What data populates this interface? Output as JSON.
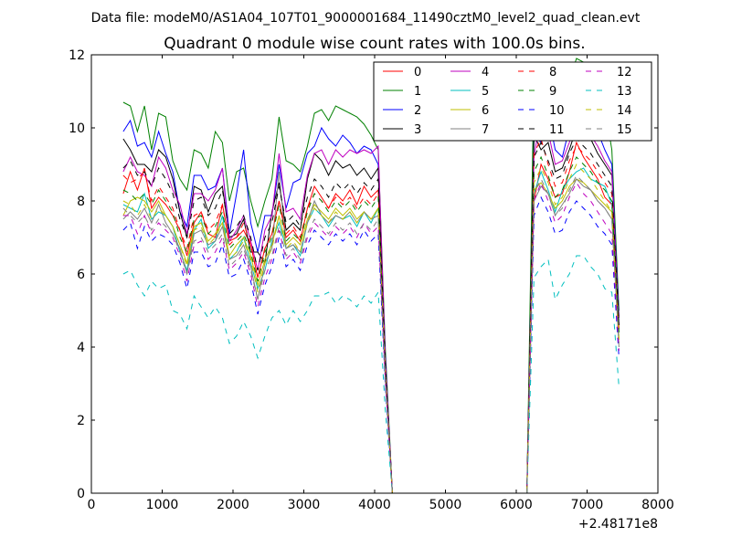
{
  "header": {
    "datafile": "Data file: modeM0/AS1A04_107T01_9000001684_11490cztM0_level2_quad_clean.evt"
  },
  "chart_data": {
    "type": "line",
    "title": "Quadrant 0 module wise count rates with 100.0s bins.",
    "xlabel": "",
    "ylabel": "",
    "offset_text": "+2.48171e8",
    "xlim": [
      0,
      8000
    ],
    "ylim": [
      0,
      12
    ],
    "x_ticks": [
      "0",
      "1000",
      "2000",
      "3000",
      "4000",
      "5000",
      "6000",
      "7000",
      "8000"
    ],
    "y_ticks": [
      "0",
      "2",
      "4",
      "6",
      "8",
      "10",
      "12"
    ],
    "legend_position": "top-right",
    "x": [
      450,
      550,
      650,
      750,
      850,
      950,
      1050,
      1150,
      1250,
      1350,
      1450,
      1550,
      1650,
      1750,
      1850,
      1950,
      2050,
      2150,
      2250,
      2350,
      2450,
      2550,
      2650,
      2750,
      2850,
      2950,
      3050,
      3150,
      3250,
      3350,
      3450,
      3550,
      3650,
      3750,
      3850,
      3950,
      4050,
      4150,
      4250,
      4350,
      4450,
      4550,
      4650,
      4750,
      4850,
      4950,
      5050,
      5150,
      5250,
      5350,
      5450,
      5550,
      5650,
      5750,
      5850,
      5950,
      6050,
      6150,
      6250,
      6350,
      6450,
      6550,
      6650,
      6750,
      6850,
      6950,
      7050,
      7150,
      7250,
      7350,
      7450
    ],
    "series": [
      {
        "name": "0",
        "color": "#ff0000",
        "dash": "solid",
        "values": [
          8.2,
          8.8,
          8.3,
          8.9,
          7.8,
          8.1,
          7.9,
          7.6,
          7.2,
          6.5,
          7.4,
          7.7,
          7.1,
          7.0,
          7.9,
          6.9,
          7.0,
          7.2,
          6.8,
          5.9,
          6.7,
          7.1,
          8.0,
          7.0,
          7.2,
          6.9,
          7.8,
          8.4,
          8.1,
          7.8,
          8.2,
          8.0,
          8.3,
          7.9,
          8.4,
          8.1,
          8.3,
          3.5,
          0,
          0,
          0,
          0,
          0,
          0,
          0,
          0,
          0,
          0,
          0,
          0,
          0,
          0,
          0,
          0,
          0,
          0,
          0,
          0,
          8.0,
          9.0,
          8.6,
          8.1,
          8.2,
          8.8,
          9.6,
          9.2,
          8.9,
          8.6,
          8.1,
          7.9,
          4.8
        ]
      },
      {
        "name": "1",
        "color": "#008000",
        "dash": "solid",
        "values": [
          10.7,
          10.6,
          9.9,
          10.6,
          9.4,
          10.4,
          10.3,
          9.1,
          8.6,
          8.3,
          9.4,
          9.3,
          8.9,
          9.9,
          9.6,
          8.0,
          8.8,
          8.9,
          8.0,
          7.3,
          8.0,
          8.6,
          10.3,
          9.1,
          9.0,
          8.8,
          9.5,
          10.4,
          10.5,
          10.2,
          10.6,
          10.5,
          10.4,
          10.3,
          10.1,
          9.8,
          9.4,
          4.0,
          0,
          0,
          0,
          0,
          0,
          0,
          0,
          0,
          0,
          0,
          0,
          0,
          0,
          0,
          0,
          0,
          0,
          0,
          0,
          0,
          11.5,
          10.8,
          11.2,
          10.2,
          10.4,
          11.3,
          11.9,
          11.8,
          11.6,
          11.0,
          10.6,
          9.4,
          5.0
        ]
      },
      {
        "name": "2",
        "color": "#0000ff",
        "dash": "solid",
        "values": [
          9.9,
          10.2,
          9.5,
          9.6,
          9.2,
          9.9,
          9.3,
          8.8,
          7.7,
          7.3,
          8.7,
          8.7,
          8.3,
          8.4,
          8.9,
          7.1,
          8.2,
          9.4,
          7.4,
          6.6,
          7.6,
          7.6,
          9.0,
          7.8,
          8.5,
          8.6,
          9.3,
          9.5,
          10.0,
          9.7,
          9.5,
          9.8,
          9.6,
          9.3,
          9.5,
          9.4,
          9.0,
          3.8,
          0,
          0,
          0,
          0,
          0,
          0,
          0,
          0,
          0,
          0,
          0,
          0,
          0,
          0,
          0,
          0,
          0,
          0,
          0,
          0,
          9.8,
          9.6,
          10.4,
          9.4,
          9.2,
          10.0,
          10.6,
          10.4,
          10.2,
          9.9,
          9.4,
          9.0,
          4.8
        ]
      },
      {
        "name": "3",
        "color": "#000000",
        "dash": "solid",
        "values": [
          9.7,
          9.4,
          9.0,
          9.0,
          8.8,
          9.4,
          9.2,
          8.6,
          7.7,
          7.0,
          8.4,
          8.3,
          7.7,
          8.2,
          8.4,
          7.0,
          7.1,
          7.5,
          6.6,
          6.6,
          6.3,
          7.7,
          8.5,
          7.2,
          7.4,
          7.2,
          8.6,
          9.3,
          9.1,
          8.7,
          9.1,
          8.9,
          9.0,
          8.7,
          8.9,
          8.6,
          8.9,
          3.6,
          0,
          0,
          0,
          0,
          0,
          0,
          0,
          0,
          0,
          0,
          0,
          0,
          0,
          0,
          0,
          0,
          0,
          0,
          0,
          0,
          9.8,
          9.4,
          9.6,
          8.8,
          8.9,
          9.4,
          10.0,
          9.8,
          9.7,
          9.3,
          9.0,
          8.7,
          4.7
        ]
      },
      {
        "name": "4",
        "color": "#bf00bf",
        "dash": "solid",
        "values": [
          8.8,
          9.2,
          8.8,
          8.7,
          8.4,
          9.2,
          8.9,
          8.3,
          7.9,
          7.1,
          8.2,
          8.2,
          8.0,
          8.3,
          8.9,
          6.9,
          7.2,
          7.6,
          6.9,
          6.1,
          7.2,
          7.6,
          9.3,
          7.7,
          7.8,
          7.5,
          8.7,
          9.3,
          9.4,
          9.0,
          9.4,
          9.2,
          9.4,
          9.3,
          9.4,
          9.3,
          9.5,
          3.7,
          0,
          0,
          0,
          0,
          0,
          0,
          0,
          0,
          0,
          0,
          0,
          0,
          0,
          0,
          0,
          0,
          0,
          0,
          0,
          0,
          9.2,
          10.4,
          9.9,
          9.0,
          9.1,
          9.6,
          10.1,
          9.9,
          9.8,
          9.5,
          9.1,
          8.8,
          4.6
        ]
      },
      {
        "name": "5",
        "color": "#00bfbf",
        "dash": "solid",
        "values": [
          7.9,
          7.8,
          7.7,
          8.2,
          7.5,
          7.7,
          7.6,
          7.3,
          6.6,
          6.1,
          7.2,
          7.5,
          6.7,
          6.9,
          7.6,
          6.4,
          6.6,
          7.0,
          6.3,
          5.6,
          6.1,
          6.9,
          7.4,
          6.7,
          6.8,
          6.5,
          7.4,
          7.8,
          7.6,
          7.3,
          7.6,
          7.5,
          7.6,
          7.3,
          7.7,
          7.4,
          7.8,
          3.3,
          0,
          0,
          0,
          0,
          0,
          0,
          0,
          0,
          0,
          0,
          0,
          0,
          0,
          0,
          0,
          0,
          0,
          0,
          0,
          0,
          8.2,
          8.8,
          8.3,
          7.7,
          8.3,
          8.6,
          8.8,
          8.9,
          8.6,
          8.5,
          8.4,
          7.9,
          4.4
        ]
      },
      {
        "name": "6",
        "color": "#bfbf00",
        "dash": "solid",
        "values": [
          7.6,
          8.0,
          8.1,
          8.0,
          7.7,
          8.0,
          7.6,
          7.3,
          6.8,
          6.3,
          7.3,
          7.4,
          6.9,
          7.1,
          7.4,
          6.5,
          6.8,
          7.0,
          6.5,
          5.7,
          6.4,
          6.8,
          7.6,
          6.8,
          7.0,
          6.8,
          7.5,
          7.9,
          7.7,
          7.5,
          7.8,
          7.6,
          7.8,
          7.5,
          7.7,
          7.5,
          7.8,
          3.3,
          0,
          0,
          0,
          0,
          0,
          0,
          0,
          0,
          0,
          0,
          0,
          0,
          0,
          0,
          0,
          0,
          0,
          0,
          0,
          0,
          8.3,
          8.5,
          8.2,
          7.8,
          8.0,
          8.4,
          8.6,
          8.5,
          8.3,
          8.1,
          7.9,
          7.7,
          4.2
        ]
      },
      {
        "name": "7",
        "color": "#808080",
        "dash": "solid",
        "values": [
          7.5,
          7.7,
          7.5,
          7.8,
          7.4,
          7.9,
          7.4,
          7.1,
          6.7,
          6.0,
          7.1,
          7.2,
          6.8,
          6.9,
          7.3,
          6.4,
          6.5,
          6.8,
          6.2,
          5.3,
          6.3,
          6.7,
          8.8,
          6.7,
          6.8,
          6.6,
          7.4,
          8.0,
          7.6,
          7.4,
          7.6,
          7.5,
          7.7,
          7.4,
          7.7,
          7.5,
          7.6,
          3.2,
          0,
          0,
          0,
          0,
          0,
          0,
          0,
          0,
          0,
          0,
          0,
          0,
          0,
          0,
          0,
          0,
          0,
          0,
          0,
          0,
          8.0,
          8.4,
          8.2,
          7.6,
          7.9,
          8.2,
          8.6,
          8.4,
          8.3,
          8.0,
          7.8,
          7.5,
          4.0
        ]
      },
      {
        "name": "8",
        "color": "#ff0000",
        "dash": "dashed",
        "values": [
          8.7,
          8.5,
          8.6,
          8.8,
          8.0,
          8.4,
          8.1,
          7.8,
          7.2,
          6.7,
          7.6,
          7.7,
          7.2,
          7.4,
          7.9,
          6.8,
          7.0,
          7.4,
          6.8,
          5.9,
          6.7,
          7.1,
          8.0,
          7.1,
          7.3,
          7.0,
          7.8,
          8.2,
          8.0,
          7.8,
          8.1,
          7.9,
          8.1,
          7.8,
          8.1,
          7.9,
          8.2,
          3.5,
          0,
          0,
          0,
          0,
          0,
          0,
          0,
          0,
          0,
          0,
          0,
          0,
          0,
          0,
          0,
          0,
          0,
          0,
          0,
          0,
          9.3,
          9.7,
          9.0,
          8.4,
          8.5,
          9.1,
          9.5,
          9.3,
          9.1,
          8.8,
          8.5,
          8.2,
          4.5
        ]
      },
      {
        "name": "9",
        "color": "#008000",
        "dash": "dashed",
        "values": [
          8.3,
          8.2,
          8.0,
          8.2,
          7.9,
          8.3,
          8.0,
          7.7,
          7.0,
          6.6,
          7.5,
          7.6,
          7.1,
          7.3,
          7.7,
          6.7,
          6.9,
          7.1,
          6.6,
          5.8,
          6.6,
          7.0,
          7.9,
          6.9,
          7.1,
          6.9,
          7.7,
          8.2,
          8.0,
          7.7,
          8.0,
          7.8,
          8.0,
          7.7,
          8.0,
          7.8,
          8.1,
          3.4,
          0,
          0,
          0,
          0,
          0,
          0,
          0,
          0,
          0,
          0,
          0,
          0,
          0,
          0,
          0,
          0,
          0,
          0,
          0,
          0,
          8.8,
          9.2,
          8.7,
          8.1,
          8.3,
          8.8,
          9.2,
          9.0,
          8.8,
          8.5,
          8.3,
          8.0,
          4.4
        ]
      },
      {
        "name": "10",
        "color": "#0000ff",
        "dash": "dashed",
        "values": [
          7.2,
          7.4,
          6.7,
          7.3,
          6.9,
          7.1,
          7.0,
          6.8,
          6.3,
          5.6,
          6.6,
          6.6,
          6.2,
          6.3,
          6.8,
          5.9,
          6.0,
          6.4,
          5.8,
          4.9,
          5.7,
          6.2,
          7.0,
          6.2,
          6.4,
          6.1,
          6.8,
          7.2,
          7.0,
          6.8,
          7.1,
          6.9,
          7.1,
          6.8,
          7.2,
          6.9,
          7.1,
          3.0,
          0,
          0,
          0,
          0,
          0,
          0,
          0,
          0,
          0,
          0,
          0,
          0,
          0,
          0,
          0,
          0,
          0,
          0,
          0,
          0,
          7.6,
          8.1,
          7.7,
          7.1,
          7.2,
          7.7,
          8.0,
          7.8,
          7.6,
          7.3,
          7.1,
          6.8,
          3.7
        ]
      },
      {
        "name": "11",
        "color": "#000000",
        "dash": "dashed",
        "values": [
          8.9,
          9.1,
          8.7,
          8.8,
          8.4,
          8.9,
          8.6,
          8.2,
          7.5,
          7.0,
          8.0,
          8.1,
          7.6,
          7.8,
          8.3,
          7.1,
          7.3,
          7.6,
          7.0,
          6.1,
          7.0,
          7.4,
          8.4,
          7.4,
          7.6,
          7.3,
          8.1,
          8.6,
          8.4,
          8.1,
          8.5,
          8.3,
          8.5,
          8.2,
          8.5,
          8.3,
          8.6,
          3.6,
          0,
          0,
          0,
          0,
          0,
          0,
          0,
          0,
          0,
          0,
          0,
          0,
          0,
          0,
          0,
          0,
          0,
          0,
          0,
          0,
          9.2,
          9.6,
          9.1,
          8.6,
          8.7,
          9.3,
          9.7,
          9.5,
          9.3,
          9.0,
          8.7,
          8.4,
          4.6
        ]
      },
      {
        "name": "12",
        "color": "#bf00bf",
        "dash": "dashed",
        "values": [
          7.6,
          7.6,
          7.1,
          7.6,
          7.1,
          7.4,
          7.2,
          7.0,
          6.5,
          5.8,
          6.8,
          6.9,
          6.4,
          6.6,
          7.0,
          6.1,
          6.3,
          6.6,
          6.0,
          5.1,
          5.9,
          6.4,
          7.2,
          6.4,
          6.6,
          6.3,
          7.0,
          7.4,
          7.2,
          7.0,
          7.3,
          7.1,
          7.3,
          7.0,
          7.4,
          7.1,
          7.3,
          3.1,
          0,
          0,
          0,
          0,
          0,
          0,
          0,
          0,
          0,
          0,
          0,
          0,
          0,
          0,
          0,
          0,
          0,
          0,
          0,
          0,
          8.0,
          8.5,
          8.0,
          7.4,
          7.6,
          8.1,
          8.5,
          8.2,
          8.0,
          7.7,
          7.4,
          7.1,
          3.9
        ]
      },
      {
        "name": "13",
        "color": "#00bfbf",
        "dash": "dashed",
        "values": [
          6.0,
          6.1,
          5.7,
          5.4,
          5.8,
          5.6,
          5.7,
          5.0,
          4.9,
          4.5,
          5.4,
          5.1,
          4.8,
          5.1,
          4.8,
          4.1,
          4.3,
          4.7,
          4.3,
          3.7,
          4.3,
          4.8,
          5.0,
          4.6,
          5.0,
          4.7,
          5.0,
          5.4,
          5.4,
          5.5,
          5.2,
          5.4,
          5.3,
          5.1,
          5.4,
          5.2,
          5.5,
          2.3,
          0,
          0,
          0,
          0,
          0,
          0,
          0,
          0,
          0,
          0,
          0,
          0,
          0,
          0,
          0,
          0,
          0,
          0,
          0,
          0,
          5.9,
          6.2,
          6.4,
          5.3,
          5.7,
          6.0,
          6.5,
          6.5,
          6.2,
          6.0,
          5.6,
          5.5,
          2.9
        ]
      },
      {
        "name": "14",
        "color": "#bfbf00",
        "dash": "dashed",
        "values": [
          8.0,
          7.9,
          7.6,
          7.9,
          7.5,
          7.8,
          7.6,
          7.3,
          6.8,
          6.2,
          7.2,
          7.3,
          6.8,
          7.0,
          7.4,
          6.4,
          6.6,
          6.9,
          6.4,
          5.5,
          6.3,
          6.7,
          7.6,
          6.7,
          6.9,
          6.6,
          7.4,
          7.8,
          7.6,
          7.4,
          7.7,
          7.5,
          7.7,
          7.4,
          7.7,
          7.5,
          7.8,
          3.3,
          0,
          0,
          0,
          0,
          0,
          0,
          0,
          0,
          0,
          0,
          0,
          0,
          0,
          0,
          0,
          0,
          0,
          0,
          0,
          0,
          8.5,
          8.9,
          8.5,
          7.9,
          8.1,
          8.6,
          9.0,
          8.8,
          8.6,
          8.3,
          8.0,
          7.7,
          4.2
        ]
      },
      {
        "name": "15",
        "color": "#808080",
        "dash": "dashed",
        "values": [
          7.8,
          7.6,
          7.4,
          7.6,
          7.2,
          7.5,
          7.3,
          7.1,
          6.6,
          6.0,
          6.9,
          7.0,
          6.6,
          6.8,
          7.1,
          6.2,
          6.4,
          6.7,
          6.1,
          5.3,
          6.1,
          6.5,
          7.3,
          6.5,
          6.7,
          6.4,
          7.1,
          7.5,
          7.3,
          7.1,
          7.4,
          7.2,
          7.4,
          7.1,
          7.4,
          7.2,
          7.5,
          3.2,
          0,
          0,
          0,
          0,
          0,
          0,
          0,
          0,
          0,
          0,
          0,
          0,
          0,
          0,
          0,
          0,
          0,
          0,
          0,
          0,
          8.2,
          8.6,
          8.2,
          7.6,
          7.8,
          8.3,
          8.7,
          8.5,
          8.3,
          8.0,
          7.8,
          7.5,
          4.1
        ]
      }
    ]
  }
}
